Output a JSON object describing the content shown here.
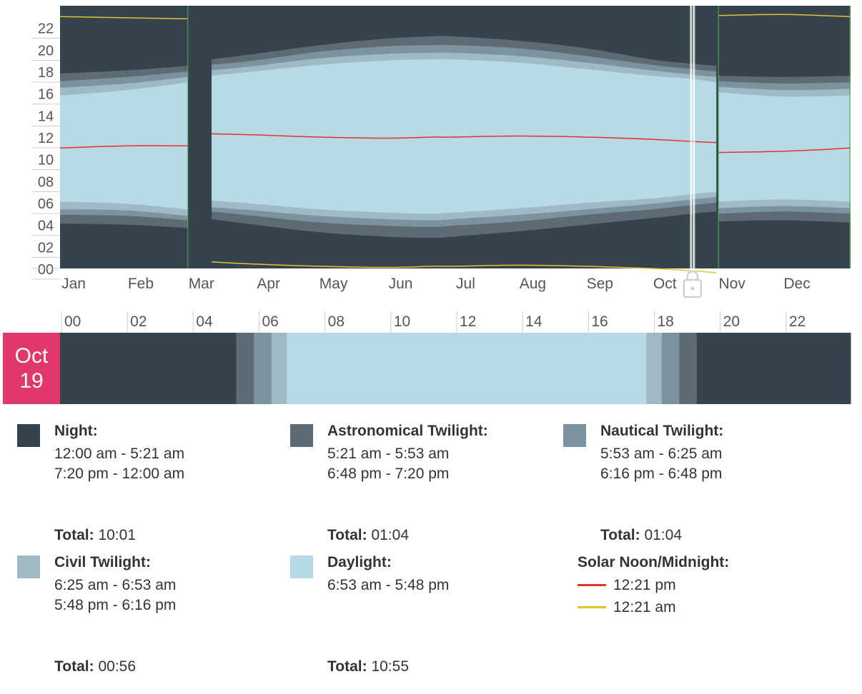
{
  "chart_data": {
    "type": "area",
    "description_axis": {
      "y_ticks": [
        "00",
        "02",
        "04",
        "06",
        "08",
        "10",
        "12",
        "14",
        "16",
        "18",
        "20",
        "22"
      ],
      "ylim": [
        0,
        24
      ]
    },
    "x_months": [
      "Jan",
      "Feb",
      "Mar",
      "Apr",
      "May",
      "Jun",
      "Jul",
      "Aug",
      "Sep",
      "Oct",
      "Nov",
      "Dec"
    ],
    "x_day_of_year": [
      0,
      31,
      59,
      70,
      90,
      120,
      151,
      172,
      181,
      212,
      243,
      273,
      292,
      303,
      304,
      334,
      365
    ],
    "night_end": [
      4.1,
      4.0,
      3.7,
      4.5,
      4.0,
      3.3,
      2.9,
      2.8,
      2.9,
      3.4,
      4.0,
      4.6,
      5.0,
      5.2,
      4.3,
      4.4,
      4.2
    ],
    "astronomical_end": [
      4.9,
      4.8,
      4.4,
      5.2,
      4.8,
      4.2,
      3.9,
      3.8,
      3.9,
      4.3,
      4.9,
      5.4,
      5.8,
      6.0,
      5.0,
      5.2,
      5.0
    ],
    "nautical_end": [
      5.4,
      5.3,
      4.8,
      5.6,
      5.3,
      4.8,
      4.5,
      4.4,
      4.5,
      4.9,
      5.4,
      5.9,
      6.3,
      6.5,
      5.5,
      5.7,
      5.5
    ],
    "sunrise": [
      6.1,
      5.9,
      5.4,
      6.2,
      5.9,
      5.4,
      5.1,
      5.0,
      5.1,
      5.5,
      6.0,
      6.4,
      6.8,
      7.0,
      6.1,
      6.3,
      6.1
    ],
    "sunset": [
      15.8,
      16.3,
      17.0,
      17.6,
      18.0,
      18.6,
      19.0,
      19.1,
      19.1,
      18.8,
      18.2,
      17.6,
      17.3,
      17.0,
      16.1,
      15.7,
      15.8
    ],
    "civil_end": [
      16.5,
      16.9,
      17.5,
      18.1,
      18.5,
      19.2,
      19.6,
      19.7,
      19.7,
      19.4,
      18.8,
      18.1,
      17.7,
      17.5,
      16.6,
      16.3,
      16.4
    ],
    "nautical_dusk_end": [
      17.1,
      17.5,
      18.0,
      18.6,
      19.0,
      19.8,
      20.3,
      20.4,
      20.4,
      20.1,
      19.4,
      18.6,
      18.2,
      18.0,
      17.1,
      16.9,
      17.0
    ],
    "night_start": [
      17.8,
      18.1,
      18.5,
      19.1,
      19.6,
      20.4,
      21.0,
      21.2,
      21.2,
      20.8,
      20.1,
      19.1,
      18.7,
      18.5,
      17.6,
      17.5,
      17.6
    ],
    "solar_noon": [
      11.0,
      11.2,
      11.2,
      12.3,
      12.2,
      12.0,
      11.9,
      12.0,
      12.0,
      12.1,
      12.0,
      11.8,
      11.6,
      11.5,
      10.6,
      10.7,
      11.0
    ],
    "solar_midnight": [
      23.0,
      22.9,
      22.8,
      0.6,
      0.4,
      0.2,
      0.1,
      0.2,
      0.2,
      0.3,
      0.2,
      0.0,
      -0.2,
      -0.4,
      23.1,
      23.2,
      23.0
    ],
    "dst_day_start": 70,
    "dst_day_end": 304,
    "selected_day_of_year": 292,
    "selected_marker_icon": "lock-icon",
    "day_axis_ticks": [
      "00",
      "02",
      "04",
      "06",
      "08",
      "10",
      "12",
      "14",
      "16",
      "18",
      "20",
      "22"
    ],
    "day_segments": [
      {
        "kind": "night",
        "start": 0,
        "end": 5.35
      },
      {
        "kind": "astronomical",
        "start": 5.35,
        "end": 5.883
      },
      {
        "kind": "nautical",
        "start": 5.883,
        "end": 6.417
      },
      {
        "kind": "civil",
        "start": 6.417,
        "end": 6.883
      },
      {
        "kind": "daylight",
        "start": 6.883,
        "end": 17.8
      },
      {
        "kind": "civil",
        "start": 17.8,
        "end": 18.267
      },
      {
        "kind": "nautical",
        "start": 18.267,
        "end": 18.8
      },
      {
        "kind": "astronomical",
        "start": 18.8,
        "end": 19.333
      },
      {
        "kind": "night",
        "start": 19.333,
        "end": 24
      }
    ]
  },
  "colors": {
    "night": "#34434d",
    "astronomical": "#5e6b73",
    "nautical": "#7b939f",
    "civil": "#9fbac5",
    "daylight": "#b7dae6",
    "solar_noon": "#e0332a",
    "solar_midnight": "#e4c232",
    "selected_badge": "#e0386a",
    "dst_border": "#4caf50"
  },
  "selected_date": {
    "month": "Oct",
    "day": "19"
  },
  "legend": {
    "night": {
      "title": "Night:",
      "ranges": [
        "12:00 am - 5:21 am",
        "7:20 pm - 12:00 am"
      ],
      "total_label": "Total:",
      "total": "10:01"
    },
    "astronomical": {
      "title": "Astronomical Twilight:",
      "ranges": [
        "5:21 am - 5:53 am",
        "6:48 pm - 7:20 pm"
      ],
      "total_label": "Total:",
      "total": "01:04"
    },
    "nautical": {
      "title": "Nautical Twilight:",
      "ranges": [
        "5:53 am - 6:25 am",
        "6:16 pm - 6:48 pm"
      ],
      "total_label": "Total:",
      "total": "01:04"
    },
    "civil": {
      "title": "Civil Twilight:",
      "ranges": [
        "6:25 am - 6:53 am",
        "5:48 pm - 6:16 pm"
      ],
      "total_label": "Total:",
      "total": "00:56"
    },
    "daylight": {
      "title": "Daylight:",
      "ranges": [
        "6:53 am - 5:48 pm"
      ],
      "total_label": "Total:",
      "total": "10:55"
    },
    "solar": {
      "title": "Solar Noon/Midnight:",
      "noon": "12:21 pm",
      "midnight": "12:21 am"
    }
  }
}
